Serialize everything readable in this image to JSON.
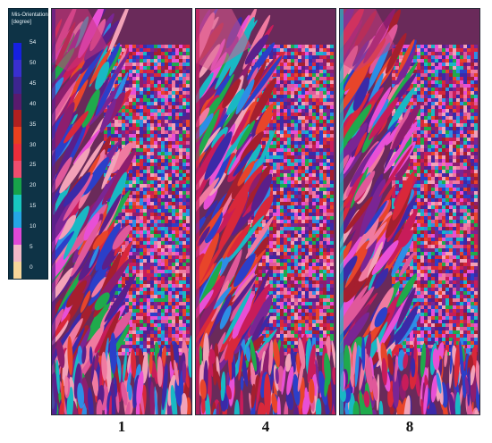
{
  "legend": {
    "title_line1": "Mis-Orientation",
    "title_line2": "[degree]",
    "ticks": [
      "54",
      "50",
      "45",
      "40",
      "35",
      "30",
      "25",
      "20",
      "15",
      "10",
      "5",
      "0"
    ],
    "gradient": [
      "#1620e0",
      "#3a2fd0",
      "#3d2590",
      "#5a1a6e",
      "#b02020",
      "#e8401e",
      "#ec2d3a",
      "#f04d6e",
      "#17a34a",
      "#18c8c0",
      "#25a6e6",
      "#e048d8",
      "#f2b8c8",
      "#f7d69a"
    ]
  },
  "panels": [
    {
      "id": "p1",
      "label": "1",
      "seed": 11,
      "columnar": "#c8347a"
    },
    {
      "id": "p4",
      "label": "4",
      "seed": 47,
      "columnar": "#d85a8e"
    },
    {
      "id": "p8",
      "label": "8",
      "seed": 83,
      "columnar": "#c83a7e"
    }
  ],
  "palette": [
    "#d9283a",
    "#e8452a",
    "#a51f2e",
    "#7a2594",
    "#3b2aa8",
    "#2b3fc9",
    "#e0589a",
    "#f07aa0",
    "#1faa4c",
    "#19b8c4",
    "#2d8ee6",
    "#e84fd6",
    "#c81c5a",
    "#8d1e6e",
    "#f2a2b8",
    "#5b1f8a"
  ]
}
